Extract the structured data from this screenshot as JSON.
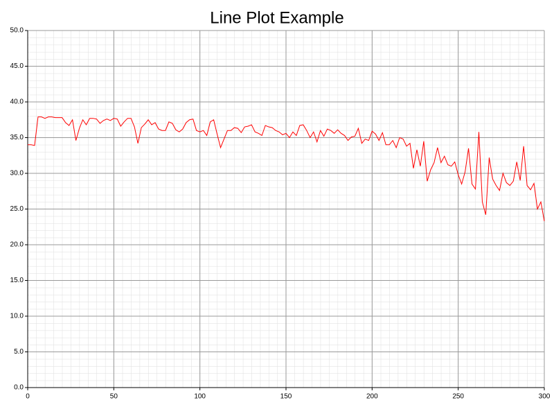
{
  "chart_data": {
    "type": "line",
    "title": "Line Plot Example",
    "x": [
      0,
      2,
      4,
      6,
      8,
      10,
      12,
      14,
      16,
      18,
      20,
      22,
      24,
      26,
      28,
      30,
      32,
      34,
      36,
      38,
      40,
      42,
      44,
      46,
      48,
      50,
      52,
      54,
      56,
      58,
      60,
      62,
      64,
      66,
      68,
      70,
      72,
      74,
      76,
      78,
      80,
      82,
      84,
      86,
      88,
      90,
      92,
      94,
      96,
      98,
      100,
      102,
      104,
      106,
      108,
      110,
      112,
      114,
      116,
      118,
      120,
      122,
      124,
      126,
      128,
      130,
      132,
      134,
      136,
      138,
      140,
      142,
      144,
      146,
      148,
      150,
      152,
      154,
      156,
      158,
      160,
      162,
      164,
      166,
      168,
      170,
      172,
      174,
      176,
      178,
      180,
      182,
      184,
      186,
      188,
      190,
      192,
      194,
      196,
      198,
      200,
      202,
      204,
      206,
      208,
      210,
      212,
      214,
      216,
      218,
      220,
      222,
      224,
      226,
      228,
      230,
      232,
      234,
      236,
      238,
      240,
      242,
      244,
      246,
      248,
      250,
      252,
      254,
      256,
      258,
      260,
      262,
      264,
      266,
      268,
      270,
      272,
      274,
      276,
      278,
      280,
      282,
      284,
      286,
      288,
      290,
      292,
      294,
      296,
      298,
      300
    ],
    "series": [
      {
        "color": "#ff0000",
        "values": [
          34.0,
          34.0,
          33.9,
          37.9,
          37.9,
          37.7,
          37.9,
          37.9,
          37.8,
          37.8,
          37.8,
          37.1,
          36.7,
          37.5,
          34.6,
          36.3,
          37.5,
          36.8,
          37.7,
          37.7,
          37.6,
          37.0,
          37.4,
          37.6,
          37.4,
          37.7,
          37.6,
          36.6,
          37.2,
          37.7,
          37.7,
          36.5,
          34.2,
          36.4,
          36.9,
          37.5,
          36.8,
          37.1,
          36.2,
          36.0,
          36.0,
          37.2,
          37.0,
          36.1,
          35.8,
          36.2,
          37.1,
          37.5,
          37.6,
          36.0,
          35.8,
          36.0,
          35.3,
          37.2,
          37.5,
          35.5,
          33.6,
          34.8,
          36.0,
          36.0,
          36.4,
          36.3,
          35.7,
          36.5,
          36.6,
          36.8,
          35.8,
          35.6,
          35.3,
          36.7,
          36.5,
          36.4,
          36.0,
          35.8,
          35.4,
          35.6,
          35.0,
          35.8,
          35.3,
          36.7,
          36.8,
          36.0,
          35.0,
          35.8,
          34.4,
          36.0,
          35.2,
          36.2,
          36.0,
          35.6,
          36.1,
          35.6,
          35.3,
          34.6,
          35.1,
          35.2,
          36.3,
          34.2,
          34.8,
          34.6,
          35.9,
          35.5,
          34.6,
          35.7,
          34.0,
          34.0,
          34.6,
          33.6,
          35.0,
          34.8,
          33.8,
          34.2,
          30.7,
          33.3,
          31.0,
          34.5,
          28.9,
          30.5,
          31.5,
          33.6,
          31.5,
          32.4,
          31.2,
          31.0,
          31.6,
          29.8,
          28.5,
          30.2,
          33.5,
          28.5,
          27.8,
          35.8,
          26.0,
          24.2,
          32.2,
          29.2,
          28.3,
          27.6,
          30.0,
          28.7,
          28.3,
          28.9,
          31.6,
          29.0,
          33.8,
          28.3,
          27.7,
          28.6,
          25.0,
          26.0,
          23.3
        ]
      }
    ],
    "xlim": [
      0,
      300
    ],
    "xticks": [
      0,
      50,
      100,
      150,
      200,
      250,
      300
    ],
    "ylim": [
      0,
      50
    ],
    "yticks": [
      {
        "value": 0,
        "label": "0.0"
      },
      {
        "value": 5,
        "label": "5.0"
      },
      {
        "value": 10,
        "label": "10.0"
      },
      {
        "value": 15,
        "label": "15.0"
      },
      {
        "value": 20,
        "label": "20.0"
      },
      {
        "value": 25,
        "label": "25.0"
      },
      {
        "value": 30,
        "label": "30.0"
      },
      {
        "value": 35,
        "label": "35.0"
      },
      {
        "value": 40,
        "label": "40.0"
      },
      {
        "value": 45,
        "label": "45.0"
      },
      {
        "value": 50,
        "label": "50.0"
      }
    ],
    "grid": true
  }
}
